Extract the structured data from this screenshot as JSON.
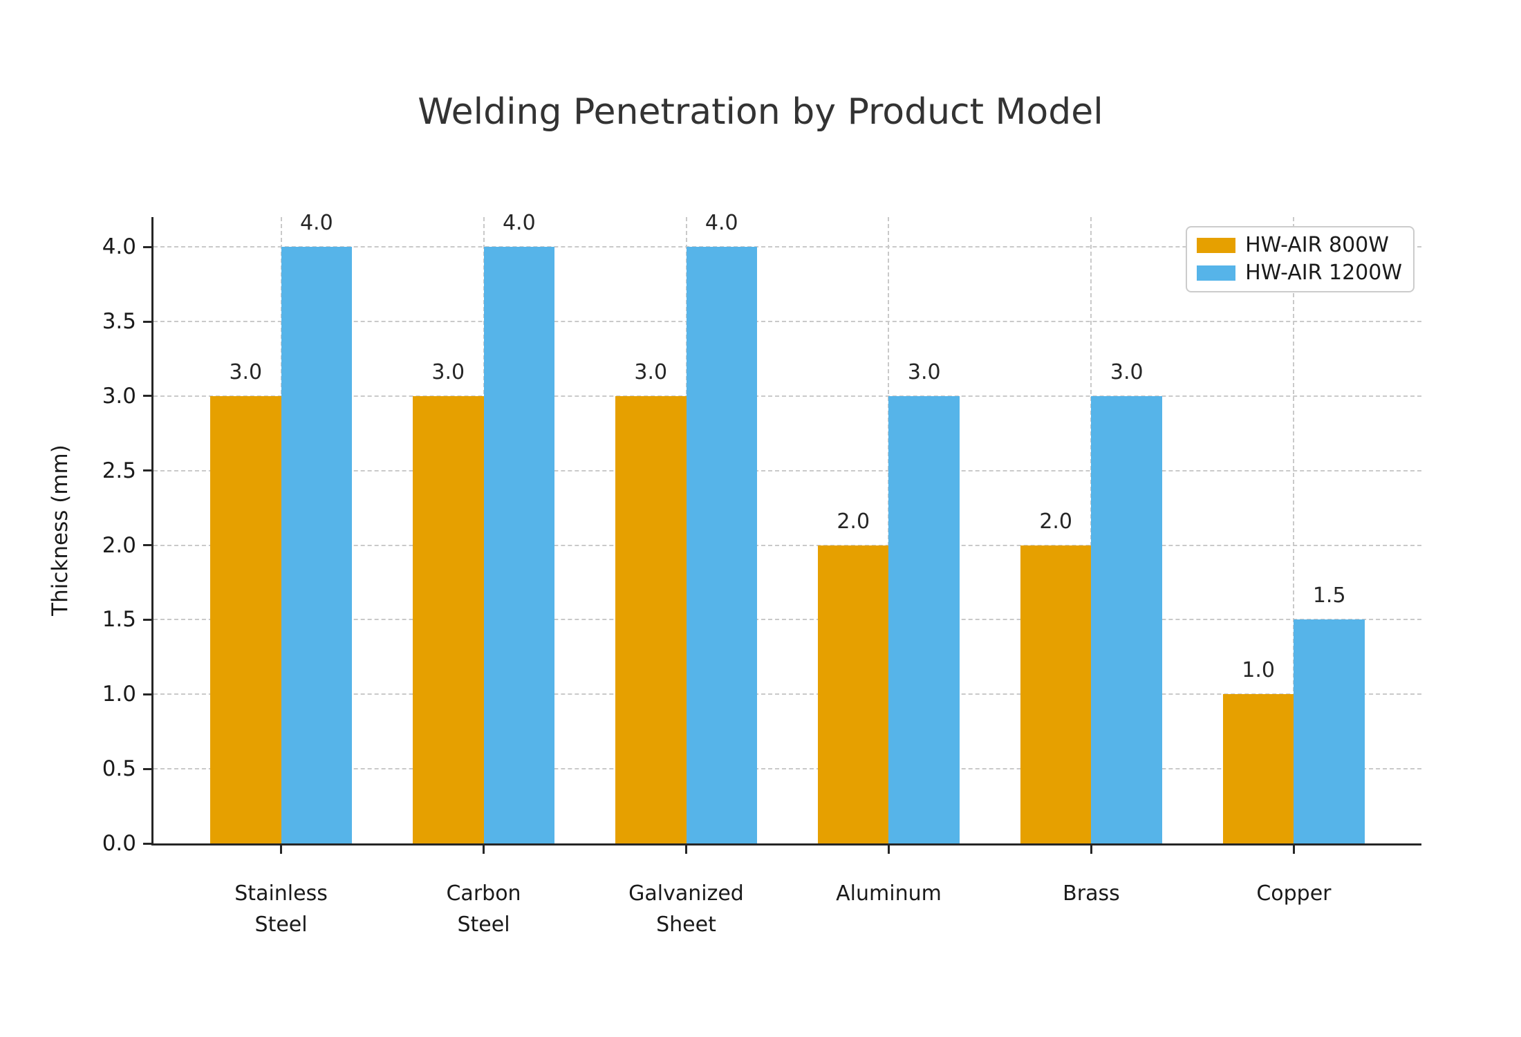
{
  "chart_data": {
    "type": "bar",
    "title": "Welding Penetration by Product Model",
    "xlabel": "",
    "ylabel": "Thickness (mm)",
    "categories": [
      "Stainless\nSteel",
      "Carbon\nSteel",
      "Galvanized\nSheet",
      "Aluminum",
      "Brass",
      "Copper"
    ],
    "series": [
      {
        "name": "HW-AIR 800W",
        "color": "#E6A000",
        "values": [
          3.0,
          3.0,
          3.0,
          2.0,
          2.0,
          1.0
        ],
        "value_labels": [
          "3.0",
          "3.0",
          "3.0",
          "2.0",
          "2.0",
          "1.0"
        ]
      },
      {
        "name": "HW-AIR 1200W",
        "color": "#56B4E9",
        "values": [
          4.0,
          4.0,
          4.0,
          3.0,
          3.0,
          1.5
        ],
        "value_labels": [
          "4.0",
          "4.0",
          "4.0",
          "3.0",
          "3.0",
          "1.5"
        ]
      }
    ],
    "y_ticks": [
      0.0,
      0.5,
      1.0,
      1.5,
      2.0,
      2.5,
      3.0,
      3.5,
      4.0
    ],
    "y_tick_labels": [
      "0.0",
      "0.5",
      "1.0",
      "1.5",
      "2.0",
      "2.5",
      "3.0",
      "3.5",
      "4.0"
    ],
    "ylim": [
      0,
      4.2
    ],
    "grid": true,
    "legend_position": "upper right",
    "colors": {
      "background": "#ffffff",
      "grid": "#c9c9c9",
      "axis": "#262626",
      "text": "#1a1a1a",
      "title": "#333333"
    }
  }
}
